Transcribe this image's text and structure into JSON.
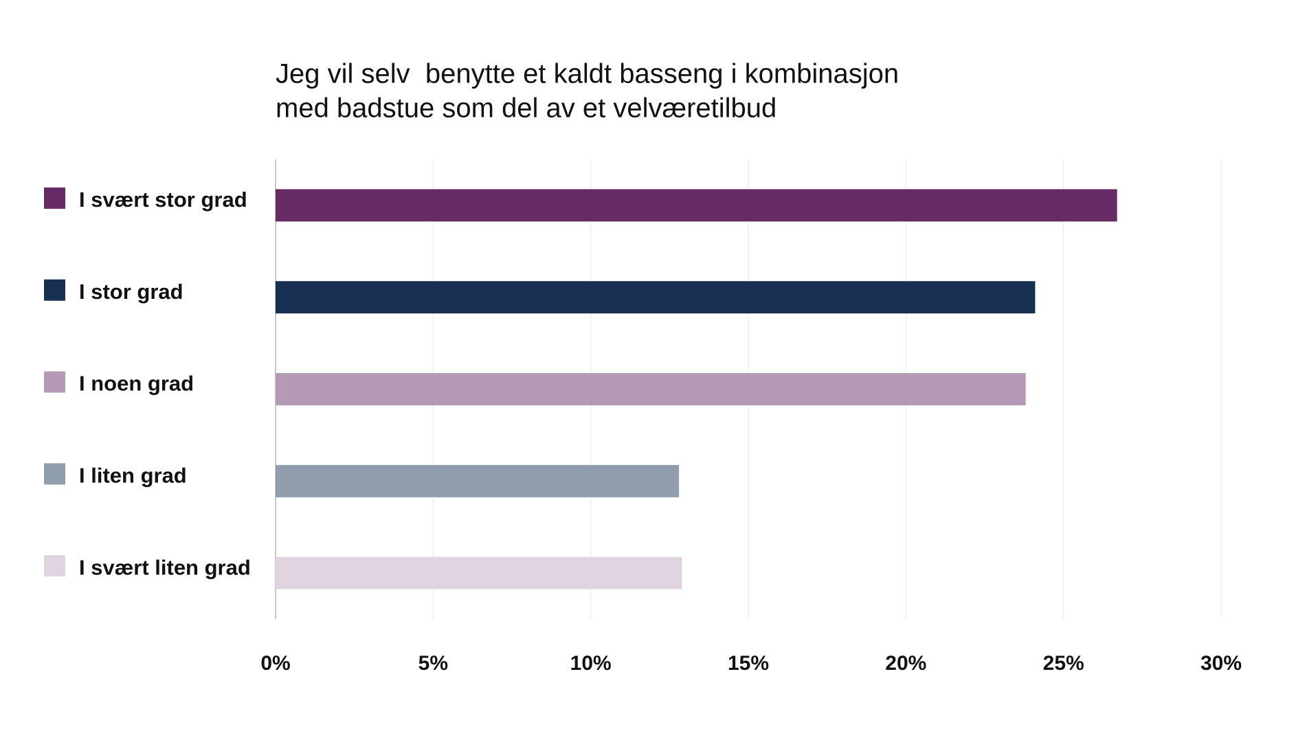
{
  "chart_data": {
    "type": "bar",
    "orientation": "horizontal",
    "title": [
      "Jeg vil selv  benytte et kaldt basseng i kombinasjon",
      "med badstue som del av et velværetilbud"
    ],
    "categories": [
      "I svært stor grad",
      "I stor grad",
      "I noen grad",
      "I liten grad",
      "I svært liten grad"
    ],
    "values": [
      26.7,
      24.1,
      23.8,
      12.8,
      12.9
    ],
    "colors": [
      "#662a64",
      "#172f50",
      "#b59ab5",
      "#909dac",
      "#e0d4e1"
    ],
    "xlim": [
      0,
      30
    ],
    "xticks": [
      {
        "value": 0,
        "label": "0%"
      },
      {
        "value": 5,
        "label": "5%"
      },
      {
        "value": 10,
        "label": "10%"
      },
      {
        "value": 15,
        "label": "15%"
      },
      {
        "value": 20,
        "label": "20%"
      },
      {
        "value": 25,
        "label": "25%"
      },
      {
        "value": 30,
        "label": "30%"
      }
    ],
    "grid": true
  }
}
